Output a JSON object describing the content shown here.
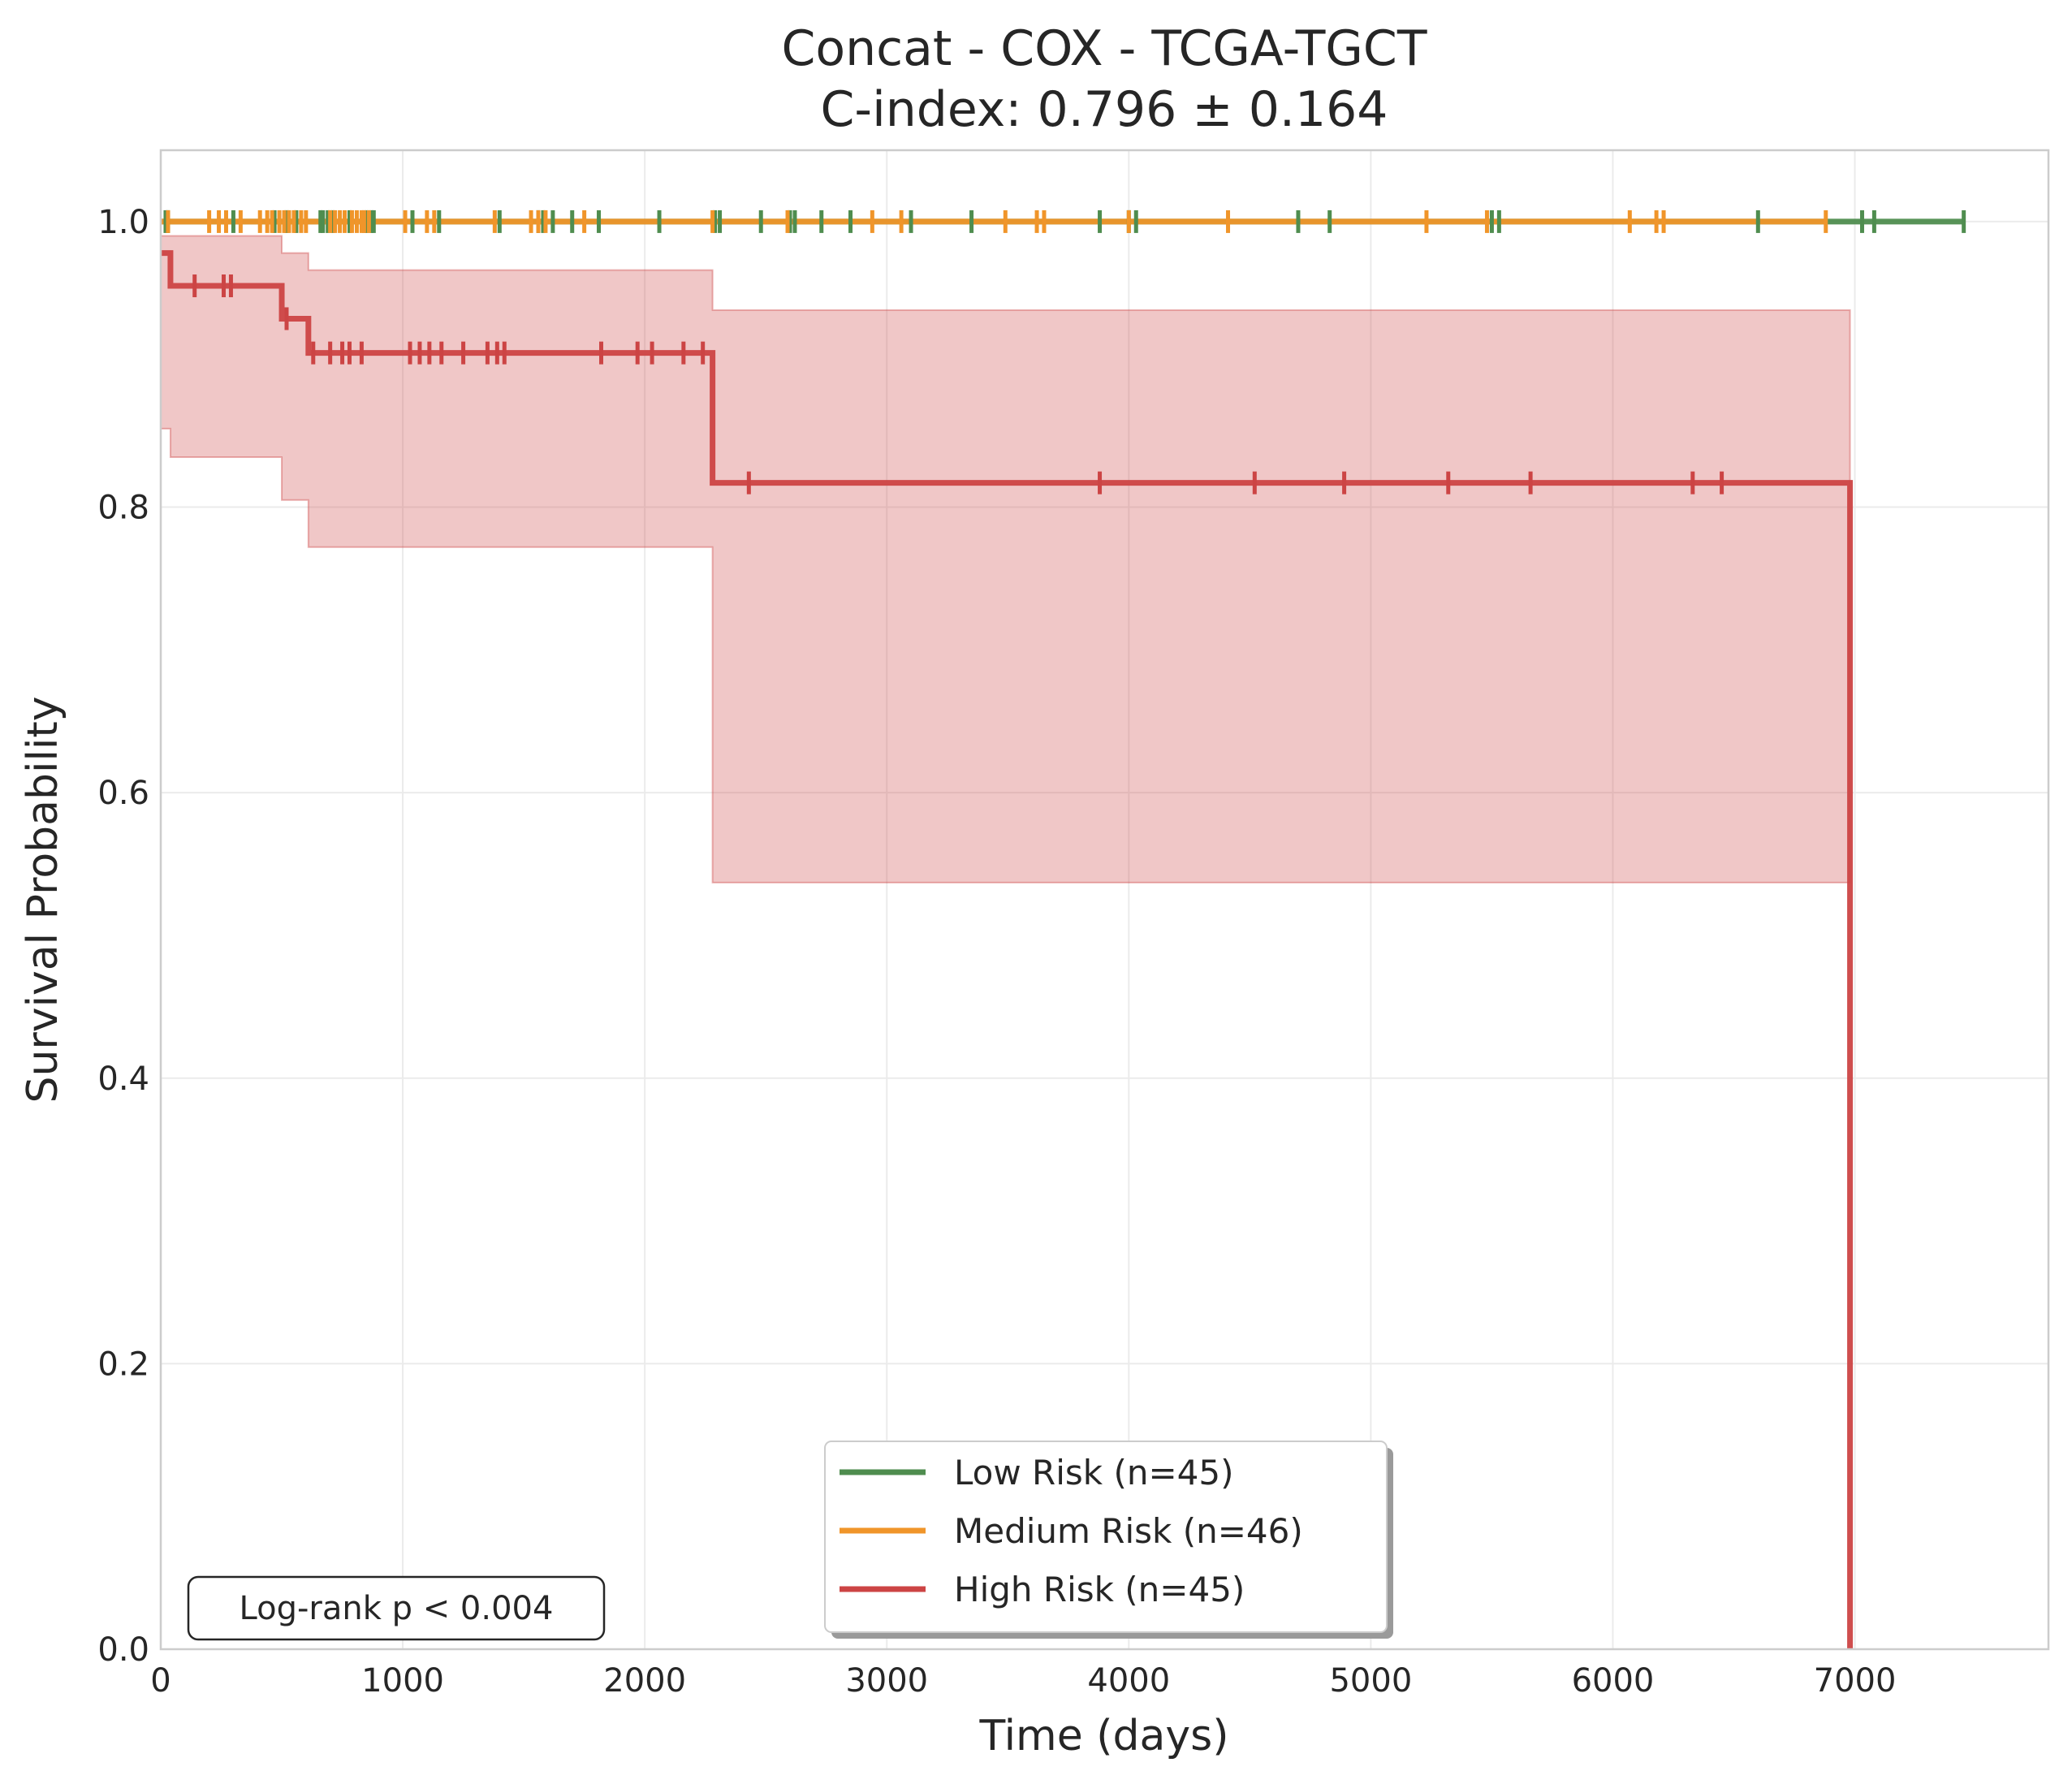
{
  "chart_data": {
    "type": "line",
    "title": "Concat - COX - TCGA-TGCT",
    "subtitle": "C-index: 0.796 ± 0.164",
    "xlabel": "Time (days)",
    "ylabel": "Survival Probability",
    "xlim": [
      0,
      7800
    ],
    "ylim": [
      0,
      1.05
    ],
    "xticks": [
      0,
      1000,
      2000,
      3000,
      4000,
      5000,
      6000,
      7000
    ],
    "xtick_labels": [
      "0",
      "1000",
      "2000",
      "3000",
      "4000",
      "5000",
      "6000",
      "7000"
    ],
    "yticks": [
      0.0,
      0.2,
      0.4,
      0.6,
      0.8,
      1.0
    ],
    "ytick_labels": [
      "0.0",
      "0.2",
      "0.4",
      "0.6",
      "0.8",
      "1.0"
    ],
    "grid": true,
    "legend_position": "bottom-center",
    "annotation": "Log-rank p < 0.004",
    "series": [
      {
        "name": "Low Risk (n=45)",
        "color": "#4f8d4f",
        "steps": [
          [
            0,
            1.0
          ],
          [
            7450,
            1.0
          ]
        ],
        "censor_times": [
          20,
          30,
          300,
          470,
          520,
          560,
          660,
          670,
          690,
          710,
          780,
          850,
          870,
          880,
          1040,
          1150,
          1400,
          1560,
          1580,
          1620,
          1700,
          1810,
          2060,
          2290,
          2310,
          2480,
          2600,
          2620,
          2730,
          2850,
          3100,
          3350,
          3880,
          4000,
          4030,
          4700,
          4830,
          5500,
          5530,
          6600,
          7030,
          7080,
          7450
        ]
      },
      {
        "name": "Medium Risk (n=46)",
        "color": "#f0952a",
        "steps": [
          [
            0,
            1.0
          ],
          [
            6880,
            1.0
          ]
        ],
        "censor_times": [
          30,
          200,
          240,
          270,
          330,
          410,
          440,
          460,
          490,
          510,
          530,
          550,
          580,
          600,
          700,
          720,
          740,
          760,
          790,
          810,
          830,
          840,
          860,
          1010,
          1100,
          1130,
          1380,
          1530,
          1560,
          1590,
          1750,
          2280,
          2590,
          2940,
          3060,
          3490,
          3620,
          3650,
          4000,
          4410,
          5230,
          5480,
          6070,
          6180,
          6210,
          6880
        ]
      },
      {
        "name": "High Risk (n=45)",
        "color": "#cc4444",
        "steps": [
          [
            0,
            0.978
          ],
          [
            40,
            0.955
          ],
          [
            500,
            0.932
          ],
          [
            610,
            0.908
          ],
          [
            2280,
            0.817
          ],
          [
            6980,
            0.0
          ]
        ],
        "censor_times": [
          140,
          260,
          290,
          520,
          630,
          700,
          750,
          780,
          830,
          1030,
          1070,
          1110,
          1160,
          1250,
          1350,
          1390,
          1420,
          1820,
          1970,
          2030,
          2160,
          2240,
          2430,
          3880,
          4520,
          4890,
          5320,
          5660,
          6330,
          6450
        ],
        "ci_upper": [
          [
            0,
            0.99
          ],
          [
            500,
            0.978
          ],
          [
            610,
            0.966
          ],
          [
            2280,
            0.938
          ],
          [
            6980,
            0.938
          ]
        ],
        "ci_lower": [
          [
            0,
            0.855
          ],
          [
            40,
            0.835
          ],
          [
            500,
            0.805
          ],
          [
            610,
            0.772
          ],
          [
            2280,
            0.537
          ],
          [
            6980,
            0.537
          ]
        ]
      }
    ]
  }
}
